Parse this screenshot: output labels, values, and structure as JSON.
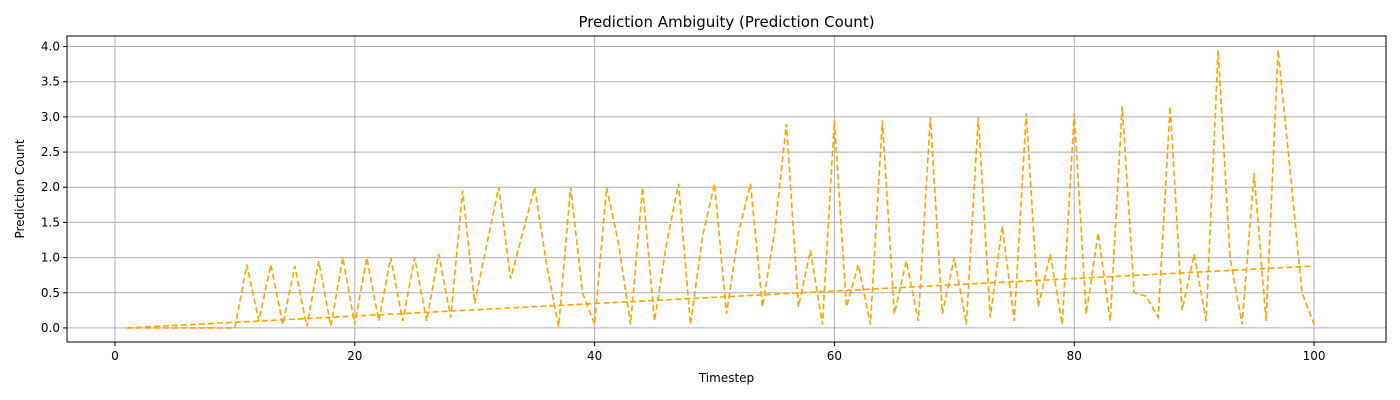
{
  "chart_data": {
    "type": "line",
    "title": "Prediction Ambiguity (Prediction Count)",
    "xlabel": "Timestep",
    "ylabel": "Prediction Count",
    "xlim": [
      -4,
      106
    ],
    "ylim": [
      -0.2,
      4.15
    ],
    "xticks": [
      0,
      20,
      40,
      60,
      80,
      100
    ],
    "yticks": [
      0.0,
      0.5,
      1.0,
      1.5,
      2.0,
      2.5,
      3.0,
      3.5,
      4.0
    ],
    "ytick_labels": [
      "0.0",
      "0.5",
      "1.0",
      "1.5",
      "2.0",
      "2.5",
      "3.0",
      "3.5",
      "4.0"
    ],
    "xtick_labels": [
      "0",
      "20",
      "40",
      "60",
      "80",
      "100"
    ],
    "grid": true,
    "line_color": "#FFA500",
    "line_style": "dashed",
    "x": [
      1,
      10,
      11,
      12,
      13,
      14,
      15,
      16,
      17,
      18,
      19,
      20,
      21,
      22,
      23,
      24,
      25,
      26,
      27,
      28,
      29,
      30,
      32,
      33,
      35,
      36,
      37,
      38,
      39,
      40,
      41,
      42,
      43,
      44,
      45,
      46,
      47,
      48,
      49,
      50,
      51,
      52,
      53,
      54,
      55,
      56,
      57,
      58,
      59,
      60,
      61,
      62,
      63,
      64,
      65,
      66,
      67,
      68,
      69,
      70,
      71,
      72,
      73,
      74,
      75,
      76,
      77,
      78,
      79,
      80,
      81,
      82,
      83,
      84,
      85,
      86,
      87,
      88,
      89,
      90,
      91,
      92,
      93,
      94,
      95,
      96,
      97,
      98,
      99,
      100
    ],
    "y": [
      0,
      0,
      0.9,
      0.1,
      0.9,
      0.05,
      0.88,
      0.02,
      0.95,
      0.02,
      1.0,
      0.05,
      1.0,
      0.1,
      1.0,
      0.1,
      1.0,
      0.1,
      1.05,
      0.15,
      1.95,
      0.35,
      2.0,
      0.7,
      2.0,
      0.9,
      0.02,
      2.0,
      0.5,
      0.05,
      2.0,
      1.2,
      0.05,
      2.0,
      0.1,
      1.2,
      2.05,
      0.05,
      1.3,
      2.05,
      0.2,
      1.35,
      2.05,
      0.3,
      1.35,
      2.9,
      0.3,
      1.1,
      0.05,
      2.95,
      0.3,
      0.9,
      0.05,
      2.95,
      0.2,
      0.95,
      0.1,
      3.0,
      0.2,
      1.0,
      0.05,
      3.0,
      0.15,
      1.45,
      0.1,
      3.05,
      0.3,
      1.05,
      0.05,
      3.05,
      0.2,
      1.35,
      0.1,
      3.15,
      0.5,
      0.45,
      0.15,
      3.15,
      0.25,
      1.05,
      0.1,
      3.95,
      1.0,
      0.05,
      2.2,
      0.1,
      3.95,
      2.25,
      0.5,
      0.05
    ],
    "trend_x": [
      1,
      100
    ],
    "trend_y": [
      0.0,
      0.88
    ]
  }
}
